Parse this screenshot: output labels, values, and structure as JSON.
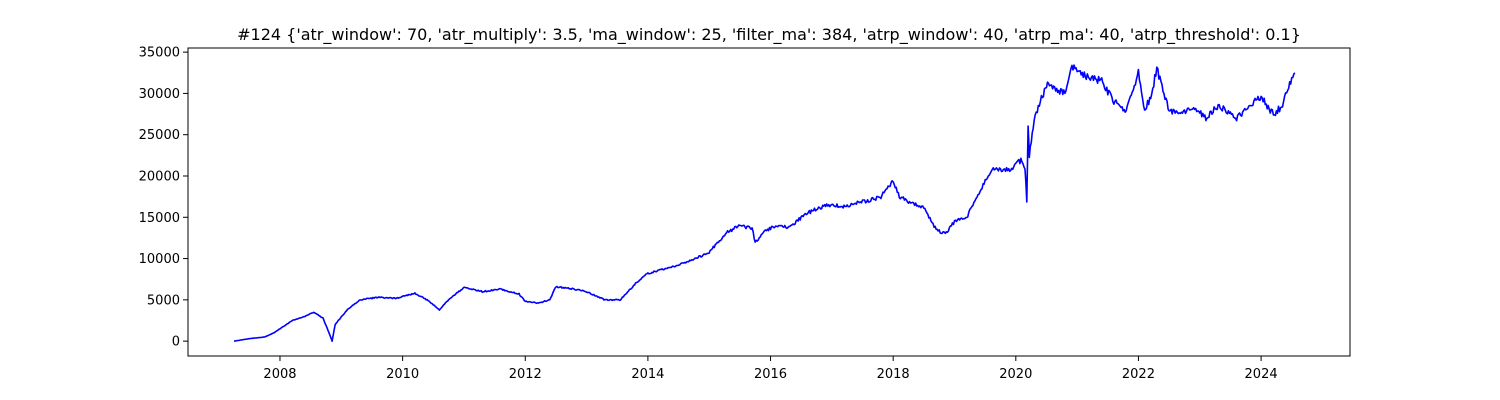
{
  "chart_data": {
    "type": "line",
    "title": "#124 {'atr_window': 70, 'atr_multiply': 3.5, 'ma_window': 25, 'filter_ma': 384, 'atrp_window': 40, 'atrp_ma': 40, 'atrp_threshold': 0.1}",
    "xlabel": "",
    "ylabel": "",
    "xlim": [
      2006.5,
      2025.45
    ],
    "ylim": [
      -1800,
      35500
    ],
    "x_ticks": [
      2008,
      2010,
      2012,
      2014,
      2016,
      2018,
      2020,
      2022,
      2024
    ],
    "x_tick_labels": [
      "2008",
      "2010",
      "2012",
      "2014",
      "2016",
      "2018",
      "2020",
      "2022",
      "2024"
    ],
    "y_ticks": [
      0,
      5000,
      10000,
      15000,
      20000,
      25000,
      30000,
      35000
    ],
    "y_tick_labels": [
      "0",
      "5000",
      "10000",
      "15000",
      "20000",
      "25000",
      "30000",
      "35000"
    ],
    "grid": false,
    "series": [
      {
        "color": "#0000ff",
        "x": [
          2007.25,
          2007.5,
          2007.75,
          2007.9,
          2008.0,
          2008.2,
          2008.4,
          2008.55,
          2008.7,
          2008.8,
          2008.85,
          2008.9,
          2008.95,
          2009.1,
          2009.3,
          2009.6,
          2009.9,
          2010.2,
          2010.4,
          2010.6,
          2010.75,
          2011.0,
          2011.3,
          2011.6,
          2011.9,
          2012.0,
          2012.2,
          2012.4,
          2012.5,
          2012.8,
          2013.0,
          2013.3,
          2013.55,
          2013.8,
          2014.0,
          2014.3,
          2014.6,
          2014.9,
          2015.0,
          2015.3,
          2015.5,
          2015.7,
          2015.75,
          2015.9,
          2016.1,
          2016.3,
          2016.6,
          2016.8,
          2017.0,
          2017.2,
          2017.4,
          2017.6,
          2017.8,
          2018.0,
          2018.1,
          2018.3,
          2018.5,
          2018.7,
          2018.85,
          2019.0,
          2019.2,
          2019.4,
          2019.6,
          2019.9,
          2020.1,
          2020.15,
          2020.18,
          2020.2,
          2020.22,
          2020.3,
          2020.5,
          2020.8,
          2020.9,
          2021.0,
          2021.2,
          2021.4,
          2021.6,
          2021.8,
          2022.0,
          2022.1,
          2022.2,
          2022.3,
          2022.5,
          2022.7,
          2022.9,
          2023.1,
          2023.3,
          2023.6,
          2023.8,
          2024.0,
          2024.2,
          2024.35,
          2024.45,
          2024.55
        ],
        "y": [
          0,
          300,
          500,
          1000,
          1500,
          2500,
          3000,
          3500,
          2800,
          1000,
          0,
          2000,
          2500,
          3800,
          5000,
          5300,
          5200,
          5800,
          5000,
          3800,
          5000,
          6500,
          6000,
          6300,
          5700,
          4800,
          4600,
          5000,
          6600,
          6300,
          6000,
          5000,
          5000,
          7000,
          8200,
          8800,
          9500,
          10400,
          10800,
          13200,
          14000,
          13600,
          12000,
          13300,
          14000,
          13800,
          15500,
          16200,
          16500,
          16300,
          16800,
          17000,
          17500,
          19500,
          17500,
          16700,
          16200,
          13500,
          13000,
          14500,
          15000,
          18000,
          20800,
          20800,
          22000,
          21000,
          17000,
          26000,
          22500,
          27000,
          31000,
          30000,
          33500,
          32500,
          32000,
          31500,
          29000,
          28000,
          32500,
          28000,
          29500,
          33000,
          28000,
          27500,
          28500,
          27000,
          28500,
          27000,
          28500,
          29500,
          27500,
          28500,
          31000,
          32500
        ]
      }
    ]
  }
}
